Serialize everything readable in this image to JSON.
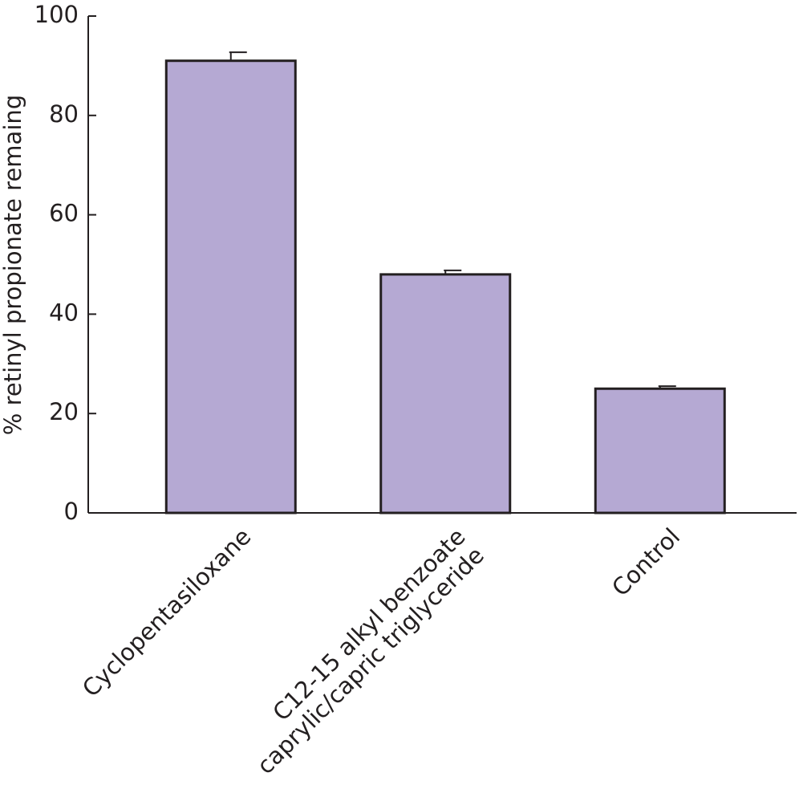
{
  "chart_data": {
    "type": "bar",
    "y_label": "% retinyl propionate remaing",
    "categories": [
      "Cyclopentasiloxane",
      "C12-15 alkyl benzoate\ncaprylic/capric triglyceride",
      "Control"
    ],
    "values": [
      91,
      48,
      25
    ],
    "errors": [
      1.7,
      0.8,
      0.5
    ],
    "color": "#b5a9d3",
    "ylim": [
      0,
      100
    ],
    "yticks": [
      0,
      20,
      40,
      60,
      80,
      100
    ],
    "grid": false
  }
}
